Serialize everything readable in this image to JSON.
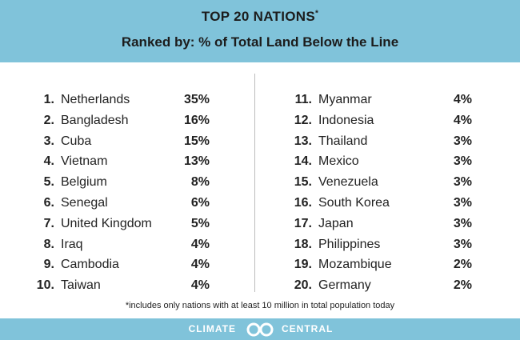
{
  "header": {
    "title": "TOP 20 NATIONS",
    "title_mark": "*",
    "subtitle": "Ranked by: % of Total Land Below the Line"
  },
  "table": {
    "rows": [
      [
        "1.",
        "Netherlands",
        "35%"
      ],
      [
        "2.",
        "Bangladesh",
        "16%"
      ],
      [
        "3.",
        "Cuba",
        "15%"
      ],
      [
        "4.",
        "Vietnam",
        "13%"
      ],
      [
        "5.",
        "Belgium",
        "8%"
      ],
      [
        "6.",
        "Senegal",
        "6%"
      ],
      [
        "7.",
        "United Kingdom",
        "5%"
      ],
      [
        "8.",
        "Iraq",
        "4%"
      ],
      [
        "9.",
        "Cambodia",
        "4%"
      ],
      [
        "10.",
        "Taiwan",
        "4%"
      ],
      [
        "11.",
        "Myanmar",
        "4%"
      ],
      [
        "12.",
        "Indonesia",
        "4%"
      ],
      [
        "13.",
        "Thailand",
        "3%"
      ],
      [
        "14.",
        "Mexico",
        "3%"
      ],
      [
        "15.",
        "Venezuela",
        "3%"
      ],
      [
        "16.",
        "South Korea",
        "3%"
      ],
      [
        "17.",
        "Japan",
        "3%"
      ],
      [
        "18.",
        "Philippines",
        "3%"
      ],
      [
        "19.",
        "Mozambique",
        "2%"
      ],
      [
        "20.",
        "Germany",
        "2%"
      ]
    ]
  },
  "footnote": "*includes only nations with at least 10 million in total population today",
  "footer": {
    "brand_left": "CLIMATE",
    "brand_right": "CENTRAL"
  }
}
